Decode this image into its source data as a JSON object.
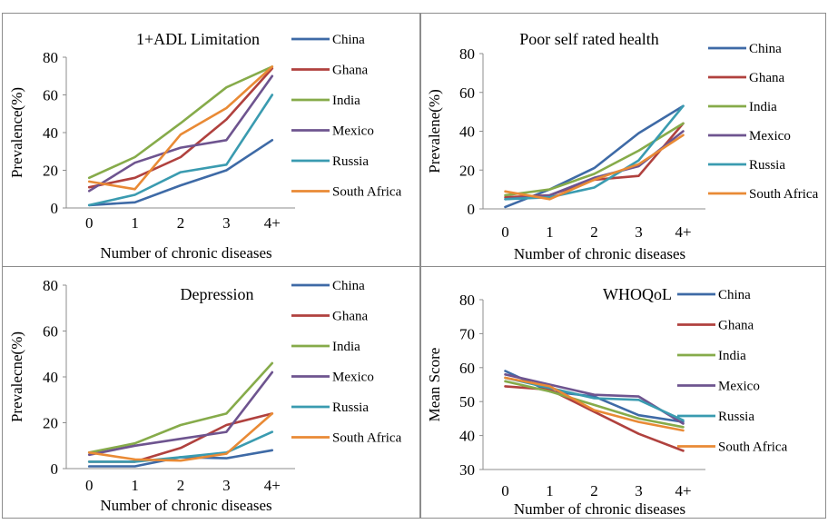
{
  "colors": {
    "China": "#3e6aa6",
    "Ghana": "#b0413e",
    "India": "#86ab4a",
    "Mexico": "#6e548f",
    "Russia": "#3a9bb0",
    "South Africa": "#e98a35"
  },
  "chart_data": [
    {
      "type": "line",
      "title": "1+ADL Limitation",
      "xlabel": "Number of chronic diseases",
      "ylabel": "Prevalence(%)",
      "categories": [
        "0",
        "1",
        "2",
        "3",
        "4+"
      ],
      "ylim": [
        0,
        80
      ],
      "yticks": [
        "0",
        "20",
        "40",
        "60",
        "80"
      ],
      "legend_position": "right",
      "series": [
        {
          "name": "China",
          "values": [
            1.5,
            3,
            12,
            20,
            36
          ]
        },
        {
          "name": "Ghana",
          "values": [
            11,
            16,
            27,
            47,
            74
          ]
        },
        {
          "name": "India",
          "values": [
            16,
            27,
            45,
            64,
            75
          ]
        },
        {
          "name": "Mexico",
          "values": [
            9,
            24,
            32,
            36,
            70
          ]
        },
        {
          "name": "Russia",
          "values": [
            1.5,
            7,
            19,
            23,
            60
          ]
        },
        {
          "name": "South Africa",
          "values": [
            14,
            10,
            39,
            53,
            75
          ]
        }
      ]
    },
    {
      "type": "line",
      "title": "Poor self rated health",
      "xlabel": "Number of chronic diseases",
      "ylabel": "Prevalene(%)",
      "categories": [
        "0",
        "1",
        "2",
        "3",
        "4+"
      ],
      "ylim": [
        0,
        80
      ],
      "yticks": [
        "0",
        "20",
        "40",
        "60",
        "80"
      ],
      "legend_position": "right",
      "series": [
        {
          "name": "China",
          "values": [
            1,
            10,
            21,
            39,
            53
          ]
        },
        {
          "name": "Ghana",
          "values": [
            6,
            7,
            15,
            17,
            44
          ]
        },
        {
          "name": "India",
          "values": [
            7,
            10,
            18,
            30,
            44
          ]
        },
        {
          "name": "Mexico",
          "values": [
            5,
            7,
            16,
            22,
            40
          ]
        },
        {
          "name": "Russia",
          "values": [
            5,
            6,
            11,
            25,
            53
          ]
        },
        {
          "name": "South Africa",
          "values": [
            9,
            5,
            15,
            23,
            38
          ]
        }
      ]
    },
    {
      "type": "line",
      "title": "Depression",
      "xlabel": "Number of chronic diseases",
      "ylabel": "Prevalecne(%)",
      "categories": [
        "0",
        "1",
        "2",
        "3",
        "4+"
      ],
      "ylim": [
        0,
        80
      ],
      "yticks": [
        "0",
        "20",
        "40",
        "60",
        "80"
      ],
      "legend_position": "right",
      "series": [
        {
          "name": "China",
          "values": [
            1,
            1,
            5,
            4.5,
            8
          ]
        },
        {
          "name": "Ghana",
          "values": [
            3,
            3,
            9,
            19,
            24
          ]
        },
        {
          "name": "India",
          "values": [
            7,
            11,
            19,
            24,
            46
          ]
        },
        {
          "name": "Mexico",
          "values": [
            6,
            10,
            13,
            16,
            42
          ]
        },
        {
          "name": "Russia",
          "values": [
            3,
            3,
            5,
            7,
            16
          ]
        },
        {
          "name": "South Africa",
          "values": [
            7,
            4,
            3.5,
            6.5,
            24
          ]
        }
      ]
    },
    {
      "type": "line",
      "title": "WHOQoL",
      "xlabel": "Number of chronic diseases",
      "ylabel": "Mean Score",
      "categories": [
        "0",
        "1",
        "2",
        "3",
        "4+"
      ],
      "ylim": [
        30,
        80
      ],
      "yticks": [
        "30",
        "40",
        "50",
        "60",
        "70",
        "80"
      ],
      "legend_position": "right",
      "series": [
        {
          "name": "China",
          "values": [
            59,
            53,
            51.5,
            46,
            44
          ]
        },
        {
          "name": "Ghana",
          "values": [
            54.5,
            53.5,
            47,
            40.5,
            35.5
          ]
        },
        {
          "name": "India",
          "values": [
            56,
            53,
            49,
            45,
            42.5
          ]
        },
        {
          "name": "Mexico",
          "values": [
            58,
            55,
            52,
            51.5,
            43.5
          ]
        },
        {
          "name": "Russia",
          "values": [
            57,
            54,
            51,
            50.5,
            44.5
          ]
        },
        {
          "name": "South Africa",
          "values": [
            57,
            54.5,
            47.5,
            44,
            41.5
          ]
        }
      ]
    }
  ]
}
